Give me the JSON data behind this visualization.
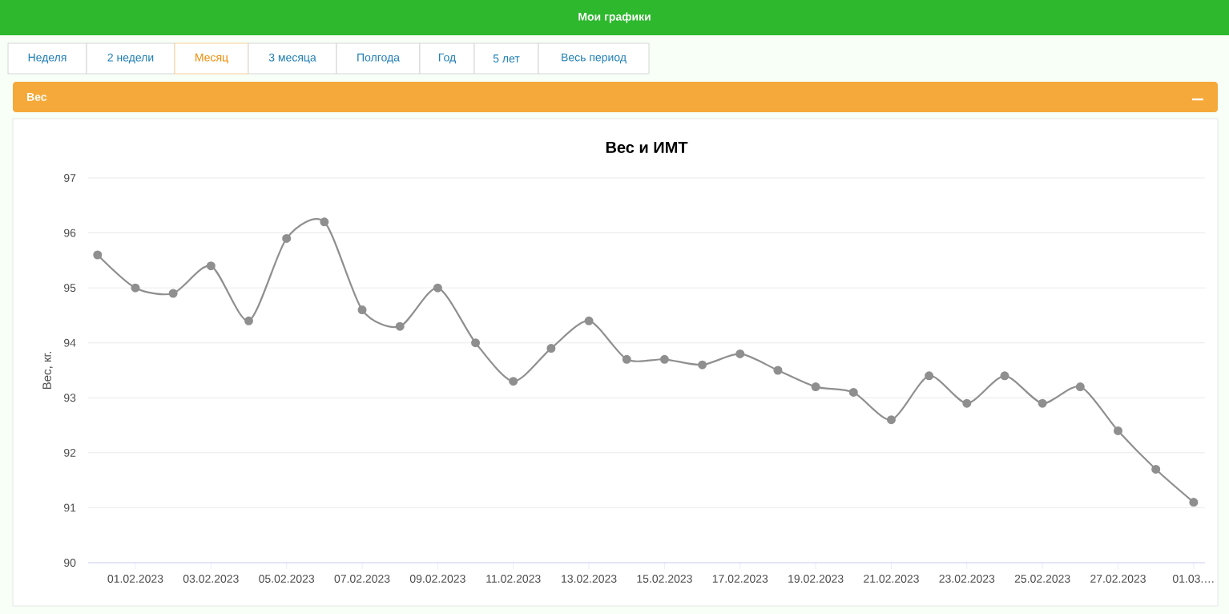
{
  "chart_data": {
    "type": "line",
    "title": "Вес и ИМТ",
    "ylabel": "Вес, кг.",
    "categories": [
      null,
      "01.02.2023",
      null,
      "03.02.2023",
      null,
      "05.02.2023",
      null,
      "07.02.2023",
      null,
      "09.02.2023",
      null,
      "11.02.2023",
      null,
      "13.02.2023",
      null,
      "15.02.2023",
      null,
      "17.02.2023",
      null,
      "19.02.2023",
      null,
      "21.02.2023",
      null,
      "23.02.2023",
      null,
      "25.02.2023",
      null,
      "27.02.2023",
      null,
      "01.03.…"
    ],
    "series": [
      {
        "color": "#8f8f8f",
        "values": [
          95.6,
          95.0,
          94.9,
          95.4,
          94.4,
          95.9,
          96.2,
          94.6,
          94.3,
          95.0,
          94.0,
          93.3,
          93.9,
          94.4,
          93.7,
          93.7,
          93.6,
          93.8,
          93.5,
          93.2,
          93.1,
          92.6,
          93.4,
          92.9,
          93.4,
          92.9,
          93.2,
          92.4,
          91.7,
          91.1
        ]
      }
    ],
    "ylim": [
      90,
      97
    ],
    "yticks": [
      90,
      91,
      92,
      93,
      94,
      95,
      96,
      97
    ],
    "grid": "y",
    "legend": false,
    "marker": "circle",
    "line_style": "solid",
    "annotations": [
      "Мои графики",
      "Неделя",
      "2 недели",
      "Месяц",
      "3 месяца",
      "Полгода",
      "Год",
      "5 лет",
      "Весь период",
      "Вес"
    ]
  }
}
